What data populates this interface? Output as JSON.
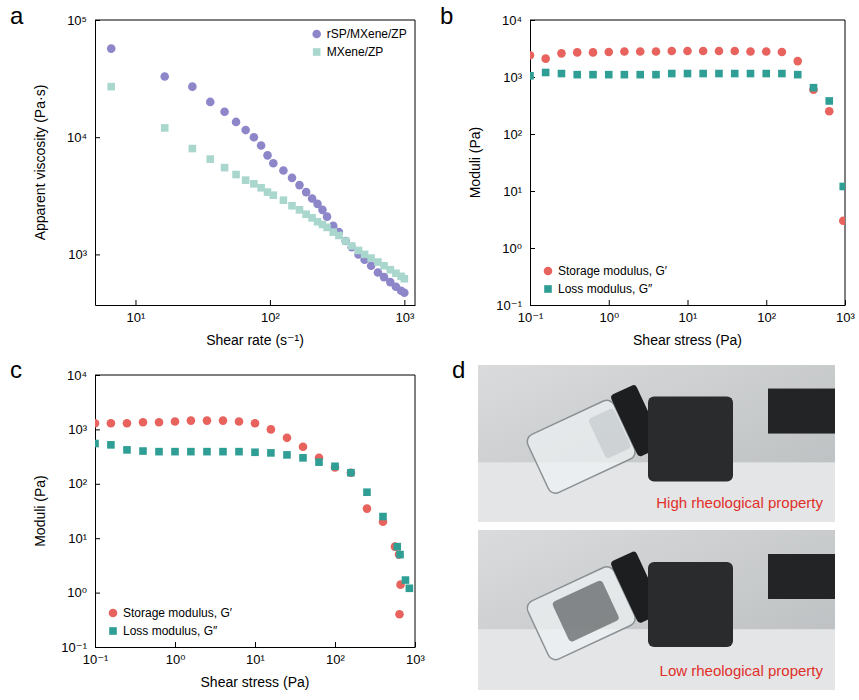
{
  "chart_data": [
    {
      "type": "scatter",
      "panel_label": "a",
      "x_label": "Shear rate (s⁻¹)",
      "y_label": "Apparent viscosity (Pa·s)",
      "log": true,
      "legend": "upper right",
      "xlim": [
        5,
        1200
      ],
      "ylim": [
        370,
        100000
      ],
      "xticks": [
        {
          "value": 10,
          "label": "10¹"
        },
        {
          "value": 100,
          "label": "10²"
        },
        {
          "value": 1000,
          "label": "10³"
        }
      ],
      "yticks": [
        {
          "value": 1000,
          "label": "10³"
        },
        {
          "value": 10000,
          "label": "10⁴"
        },
        {
          "value": 100000,
          "label": "10⁵"
        }
      ],
      "x": [
        6.6,
        16.5,
        26.5,
        36,
        46,
        56,
        66,
        76,
        86,
        96,
        106,
        126,
        146,
        166,
        186,
        206,
        226,
        246,
        266,
        296,
        326,
        366,
        406,
        456,
        506,
        566,
        636,
        706,
        786,
        866,
        946,
        1000
      ],
      "series": [
        {
          "name": "rSP/MXene/ZP",
          "color": "#8d86c9",
          "marker": "circle",
          "values": [
            57000,
            33000,
            27000,
            20000,
            16500,
            13500,
            11500,
            10000,
            8500,
            7000,
            6000,
            5200,
            4500,
            3900,
            3400,
            3000,
            2700,
            2400,
            2100,
            1750,
            1550,
            1300,
            1150,
            1000,
            900,
            800,
            700,
            640,
            580,
            530,
            490,
            470
          ]
        },
        {
          "name": "MXene/ZP",
          "color": "#a9d6cd",
          "marker": "square",
          "values": [
            27000,
            12000,
            8000,
            6500,
            5500,
            4800,
            4300,
            4000,
            3700,
            3400,
            3200,
            2900,
            2600,
            2400,
            2200,
            2050,
            1900,
            1800,
            1700,
            1550,
            1450,
            1300,
            1180,
            1080,
            1000,
            930,
            860,
            800,
            740,
            690,
            650,
            620
          ]
        }
      ]
    },
    {
      "type": "scatter",
      "panel_label": "b",
      "x_label": "Shear stress (Pa)",
      "y_label": "Moduli (Pa)",
      "log": true,
      "legend": "lower left",
      "xlim": [
        0.1,
        1000
      ],
      "ylim": [
        0.1,
        10000
      ],
      "xticks": [
        {
          "value": 0.1,
          "label": "10⁻¹"
        },
        {
          "value": 1,
          "label": "10⁰"
        },
        {
          "value": 10,
          "label": "10¹"
        },
        {
          "value": 100,
          "label": "10²"
        },
        {
          "value": 1000,
          "label": "10³"
        }
      ],
      "yticks": [
        {
          "value": 0.1,
          "label": "10⁻¹"
        },
        {
          "value": 1,
          "label": "10⁰"
        },
        {
          "value": 10,
          "label": "10¹"
        },
        {
          "value": 100,
          "label": "10²"
        },
        {
          "value": 1000,
          "label": "10³"
        },
        {
          "value": 10000,
          "label": "10⁴"
        }
      ],
      "x": [
        0.1,
        0.158,
        0.251,
        0.398,
        0.631,
        1,
        1.58,
        2.51,
        3.98,
        6.31,
        10,
        15.8,
        25.1,
        39.8,
        63.1,
        100,
        158,
        251,
        398,
        631,
        950
      ],
      "series": [
        {
          "name": "Storage modulus, G′",
          "color": "#e8625e",
          "marker": "circle",
          "values": [
            2400,
            2100,
            2600,
            2700,
            2700,
            2750,
            2800,
            2800,
            2800,
            2850,
            2850,
            2850,
            2850,
            2850,
            2800,
            2800,
            2750,
            1900,
            600,
            250,
            3
          ]
        },
        {
          "name": "Loss modulus, G″",
          "color": "#2f9e94",
          "marker": "square",
          "values": [
            1050,
            1200,
            1150,
            1100,
            1100,
            1100,
            1100,
            1100,
            1100,
            1150,
            1150,
            1150,
            1150,
            1150,
            1150,
            1150,
            1150,
            1100,
            650,
            380,
            12
          ]
        }
      ]
    },
    {
      "type": "scatter",
      "panel_label": "c",
      "x_label": "Shear stress (Pa)",
      "y_label": "Moduli (Pa)",
      "log": true,
      "legend": "lower left",
      "xlim": [
        0.1,
        1000
      ],
      "ylim": [
        0.1,
        10000
      ],
      "xticks": [
        {
          "value": 0.1,
          "label": "10⁻¹"
        },
        {
          "value": 1,
          "label": "10⁰"
        },
        {
          "value": 10,
          "label": "10¹"
        },
        {
          "value": 100,
          "label": "10²"
        },
        {
          "value": 1000,
          "label": "10³"
        }
      ],
      "yticks": [
        {
          "value": 0.1,
          "label": "10⁻¹"
        },
        {
          "value": 1,
          "label": "10⁰"
        },
        {
          "value": 10,
          "label": "10¹"
        },
        {
          "value": 100,
          "label": "10²"
        },
        {
          "value": 1000,
          "label": "10³"
        },
        {
          "value": 10000,
          "label": "10⁴"
        }
      ],
      "series": [
        {
          "name": "Storage modulus, G′",
          "color": "#e8625e",
          "marker": "circle",
          "x": [
            0.1,
            0.158,
            0.251,
            0.398,
            0.631,
            1,
            1.58,
            2.51,
            3.98,
            6.31,
            10,
            15.8,
            25.1,
            39.8,
            63.1,
            100,
            158,
            251,
            398,
            562,
            631,
            660,
            640
          ],
          "values": [
            1300,
            1300,
            1300,
            1350,
            1350,
            1400,
            1450,
            1450,
            1450,
            1400,
            1300,
            1000,
            700,
            480,
            300,
            200,
            160,
            35,
            20,
            7,
            5,
            1.4,
            0.4
          ]
        },
        {
          "name": "Loss modulus, G″",
          "color": "#2f9e94",
          "marker": "square",
          "x": [
            0.1,
            0.158,
            0.251,
            0.398,
            0.631,
            1,
            1.58,
            2.51,
            3.98,
            6.31,
            10,
            15.8,
            25.1,
            39.8,
            63.1,
            100,
            158,
            251,
            398,
            600,
            650,
            760,
            850
          ],
          "values": [
            550,
            520,
            420,
            400,
            390,
            390,
            390,
            390,
            390,
            390,
            380,
            370,
            340,
            300,
            250,
            210,
            160,
            70,
            25,
            7,
            5,
            1.7,
            1.2
          ]
        }
      ]
    }
  ],
  "photo_panel": {
    "panel_label": "d",
    "captions": [
      "High rheological property",
      "Low rheological property"
    ]
  }
}
